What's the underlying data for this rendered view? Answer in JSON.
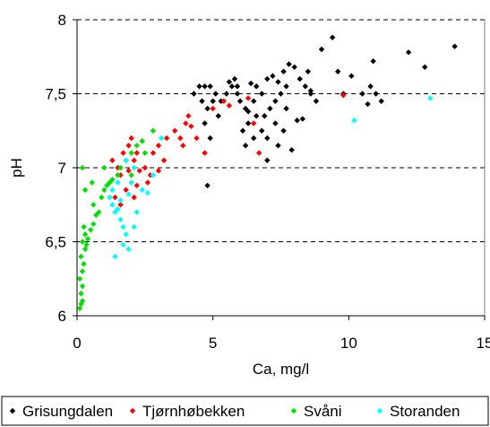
{
  "chart_data": {
    "type": "scatter",
    "title": "",
    "xlabel": "Ca, mg/l",
    "ylabel": "pH",
    "xlim": [
      0,
      15
    ],
    "ylim": [
      6,
      8
    ],
    "x_ticks": [
      0,
      5,
      10,
      15
    ],
    "y_ticks": [
      6,
      6.5,
      7,
      7.5,
      8
    ],
    "x_tick_labels": [
      "0",
      "5",
      "10",
      "15"
    ],
    "y_tick_labels": [
      "6",
      "6,5",
      "7",
      "7,5",
      "8"
    ],
    "grid": "horizontal-dashed",
    "legend_position": "bottom",
    "marker": "diamond",
    "series": [
      {
        "name": "Grisungdalen",
        "color": "#000000",
        "points": [
          [
            4.3,
            7.5
          ],
          [
            4.5,
            7.55
          ],
          [
            4.7,
            7.55
          ],
          [
            4.9,
            7.55
          ],
          [
            4.6,
            7.45
          ],
          [
            5.1,
            7.5
          ],
          [
            5.0,
            7.45
          ],
          [
            4.8,
            7.4
          ],
          [
            5.2,
            7.35
          ],
          [
            4.7,
            7.3
          ],
          [
            4.9,
            7.2
          ],
          [
            4.8,
            6.88
          ],
          [
            5.3,
            7.45
          ],
          [
            5.5,
            7.5
          ],
          [
            5.7,
            7.55
          ],
          [
            5.8,
            7.6
          ],
          [
            5.6,
            7.58
          ],
          [
            5.9,
            7.5
          ],
          [
            6.0,
            7.45
          ],
          [
            6.2,
            7.4
          ],
          [
            6.4,
            7.57
          ],
          [
            6.6,
            7.55
          ],
          [
            6.8,
            7.5
          ],
          [
            6.5,
            7.45
          ],
          [
            6.3,
            7.3
          ],
          [
            6.1,
            7.25
          ],
          [
            6.5,
            7.2
          ],
          [
            6.2,
            7.15
          ],
          [
            6.6,
            7.35
          ],
          [
            6.8,
            7.25
          ],
          [
            7.0,
            7.6
          ],
          [
            7.2,
            7.62
          ],
          [
            7.4,
            7.58
          ],
          [
            7.6,
            7.65
          ],
          [
            7.8,
            7.7
          ],
          [
            8.0,
            7.68
          ],
          [
            7.7,
            7.55
          ],
          [
            7.5,
            7.5
          ],
          [
            7.3,
            7.45
          ],
          [
            7.1,
            7.4
          ],
          [
            6.9,
            7.35
          ],
          [
            7.3,
            7.3
          ],
          [
            7.6,
            7.25
          ],
          [
            7.0,
            7.2
          ],
          [
            7.4,
            7.15
          ],
          [
            7.9,
            7.12
          ],
          [
            7.0,
            7.05
          ],
          [
            8.2,
            7.6
          ],
          [
            8.4,
            7.55
          ],
          [
            8.5,
            7.65
          ],
          [
            8.6,
            7.5
          ],
          [
            8.8,
            7.45
          ],
          [
            9.0,
            7.8
          ],
          [
            9.4,
            7.88
          ],
          [
            9.6,
            7.65
          ],
          [
            9.8,
            7.5
          ],
          [
            10.1,
            7.62
          ],
          [
            10.5,
            7.5
          ],
          [
            10.8,
            7.55
          ],
          [
            10.9,
            7.72
          ],
          [
            11.2,
            7.45
          ],
          [
            10.7,
            7.43
          ],
          [
            11.0,
            7.5
          ],
          [
            12.2,
            7.78
          ],
          [
            12.8,
            7.68
          ],
          [
            13.9,
            7.82
          ],
          [
            8.3,
            7.33
          ],
          [
            8.1,
            7.32
          ],
          [
            7.7,
            7.4
          ],
          [
            6.3,
            7.38
          ],
          [
            5.9,
            7.55
          ],
          [
            8.6,
            7.52
          ]
        ]
      },
      {
        "name": "Tjørnhøbekken",
        "color": "#ff0000",
        "points": [
          [
            1.3,
            7.05
          ],
          [
            1.5,
            7.0
          ],
          [
            1.7,
            7.1
          ],
          [
            1.6,
            6.95
          ],
          [
            1.9,
            7.15
          ],
          [
            2.0,
            7.2
          ],
          [
            2.2,
            7.1
          ],
          [
            2.4,
            7.18
          ],
          [
            2.1,
            7.05
          ],
          [
            2.3,
            6.98
          ],
          [
            2.5,
            7.0
          ],
          [
            2.0,
            6.9
          ],
          [
            1.8,
            6.85
          ],
          [
            1.4,
            6.8
          ],
          [
            1.6,
            6.75
          ],
          [
            2.2,
            6.88
          ],
          [
            2.6,
            6.9
          ],
          [
            2.8,
            7.1
          ],
          [
            3.0,
            7.15
          ],
          [
            3.2,
            7.05
          ],
          [
            3.0,
            6.98
          ],
          [
            3.3,
            7.2
          ],
          [
            3.6,
            7.25
          ],
          [
            3.8,
            7.2
          ],
          [
            4.0,
            7.3
          ],
          [
            4.1,
            7.35
          ],
          [
            4.2,
            7.28
          ],
          [
            4.4,
            7.2
          ],
          [
            4.7,
            7.1
          ],
          [
            5.0,
            7.4
          ],
          [
            5.4,
            7.45
          ],
          [
            5.6,
            7.42
          ],
          [
            6.3,
            7.47
          ],
          [
            6.5,
            7.3
          ],
          [
            6.7,
            7.1
          ],
          [
            9.8,
            7.49
          ],
          [
            2.7,
            6.95
          ],
          [
            2.1,
            6.8
          ],
          [
            1.9,
            6.98
          ],
          [
            3.9,
            7.15
          ]
        ]
      },
      {
        "name": "Svåni",
        "color": "#00dd00",
        "points": [
          [
            0.1,
            6.05
          ],
          [
            0.15,
            6.08
          ],
          [
            0.2,
            6.1
          ],
          [
            0.15,
            6.15
          ],
          [
            0.2,
            6.2
          ],
          [
            0.1,
            6.25
          ],
          [
            0.2,
            6.3
          ],
          [
            0.25,
            6.35
          ],
          [
            0.15,
            6.4
          ],
          [
            0.3,
            6.45
          ],
          [
            0.2,
            6.5
          ],
          [
            0.35,
            6.48
          ],
          [
            0.4,
            6.52
          ],
          [
            0.3,
            6.55
          ],
          [
            0.25,
            6.6
          ],
          [
            0.5,
            6.58
          ],
          [
            0.6,
            6.62
          ],
          [
            0.7,
            6.68
          ],
          [
            0.8,
            6.7
          ],
          [
            0.6,
            6.75
          ],
          [
            0.9,
            6.8
          ],
          [
            1.0,
            6.85
          ],
          [
            1.1,
            6.88
          ],
          [
            1.2,
            6.9
          ],
          [
            1.3,
            6.92
          ],
          [
            1.5,
            6.95
          ],
          [
            1.6,
            7.0
          ],
          [
            1.8,
            7.05
          ],
          [
            2.0,
            7.1
          ],
          [
            2.2,
            7.15
          ],
          [
            2.4,
            7.18
          ],
          [
            2.8,
            7.25
          ],
          [
            0.3,
            6.85
          ],
          [
            0.2,
            7.0
          ],
          [
            0.55,
            6.9
          ],
          [
            1.0,
            7.0
          ],
          [
            2.0,
            6.95
          ],
          [
            2.5,
            7.1
          ]
        ]
      },
      {
        "name": "Storanden",
        "color": "#00ffff",
        "points": [
          [
            1.2,
            6.8
          ],
          [
            1.3,
            6.75
          ],
          [
            1.4,
            6.7
          ],
          [
            1.5,
            6.72
          ],
          [
            1.6,
            6.65
          ],
          [
            1.7,
            6.6
          ],
          [
            1.8,
            6.55
          ],
          [
            1.7,
            6.48
          ],
          [
            1.9,
            6.45
          ],
          [
            1.4,
            6.4
          ],
          [
            2.1,
            6.6
          ],
          [
            2.2,
            6.7
          ],
          [
            1.9,
            6.82
          ],
          [
            2.0,
            6.9
          ],
          [
            2.4,
            6.85
          ],
          [
            2.6,
            6.83
          ],
          [
            2.1,
            7.0
          ],
          [
            1.8,
            7.05
          ],
          [
            1.5,
            6.9
          ],
          [
            1.6,
            6.78
          ],
          [
            3.1,
            7.2
          ],
          [
            2.8,
            6.95
          ],
          [
            10.2,
            7.32
          ],
          [
            13.0,
            7.47
          ],
          [
            1.3,
            6.85
          ]
        ]
      }
    ]
  }
}
